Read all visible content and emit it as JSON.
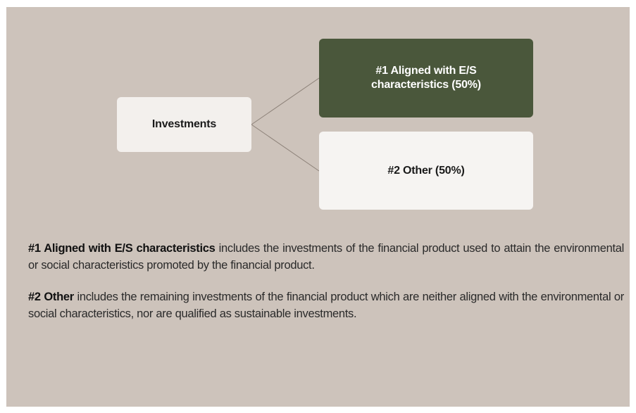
{
  "nodes": [
    {
      "label": "Investments"
    },
    {
      "label": "#1 Aligned with E/S characteristics (50%)"
    },
    {
      "label": "#2 Other (50%)"
    }
  ],
  "legend": [
    {
      "term": "#1 Aligned with E/S characteristics",
      "text": "includes the investments of the financial product used to attain the environmental or social characteristics promoted by the financial product."
    },
    {
      "term": "#2 Other",
      "text": "includes the remaining investments of the financial product which are neither aligned with the environmental or social characteristics, nor are qualified as sustainable investments."
    }
  ]
}
